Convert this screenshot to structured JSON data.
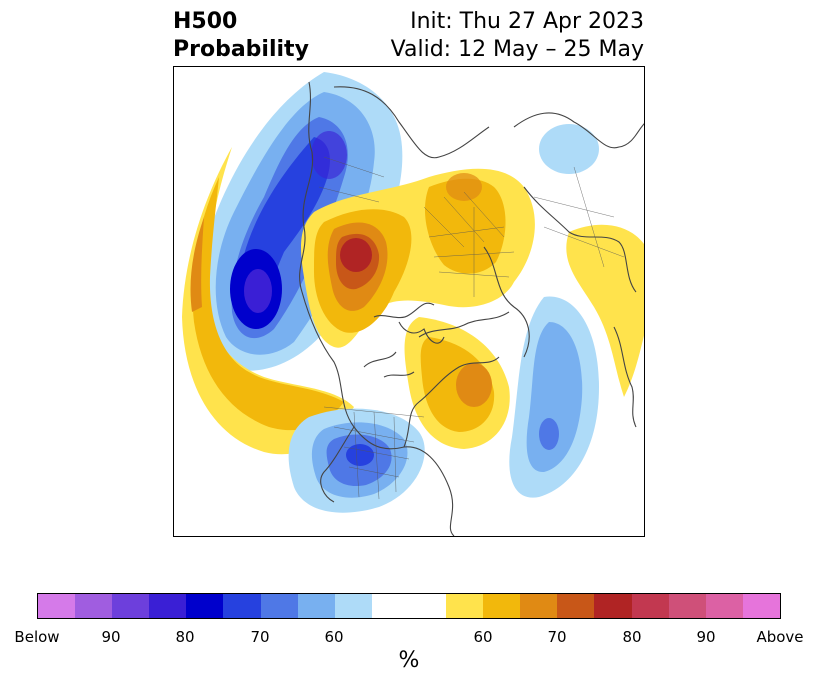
{
  "title": {
    "left_line1": "H500",
    "left_line2": "Probability",
    "right_line1": "Init: Thu 27 Apr 2023",
    "right_line2": "Valid: 12 May – 25 May"
  },
  "colorbar": {
    "colors": [
      "#d57ae9",
      "#a05de0",
      "#6d3fdc",
      "#3a1fd5",
      "#0000cc",
      "#2641df",
      "#4f78e6",
      "#78b0f0",
      "#aedbf8",
      "#ffffff",
      "#ffffff",
      "#ffe34c",
      "#f2b80c",
      "#e08a14",
      "#c85718",
      "#b02424",
      "#c23850",
      "#cf5079",
      "#dc61a4",
      "#e674db"
    ],
    "tick_labels": [
      "Below",
      "90",
      "80",
      "70",
      "60",
      "60",
      "70",
      "80",
      "90",
      "Above"
    ],
    "unit": "%"
  },
  "legend_palette": {
    "below_strong": "#3a1fd5",
    "below_mid": "#4f78e6",
    "below_weak": "#aedbf8",
    "above_weak": "#ffe34c",
    "above_mid": "#f2b80c",
    "above_strong": "#b02424",
    "coastline": "#444444"
  }
}
